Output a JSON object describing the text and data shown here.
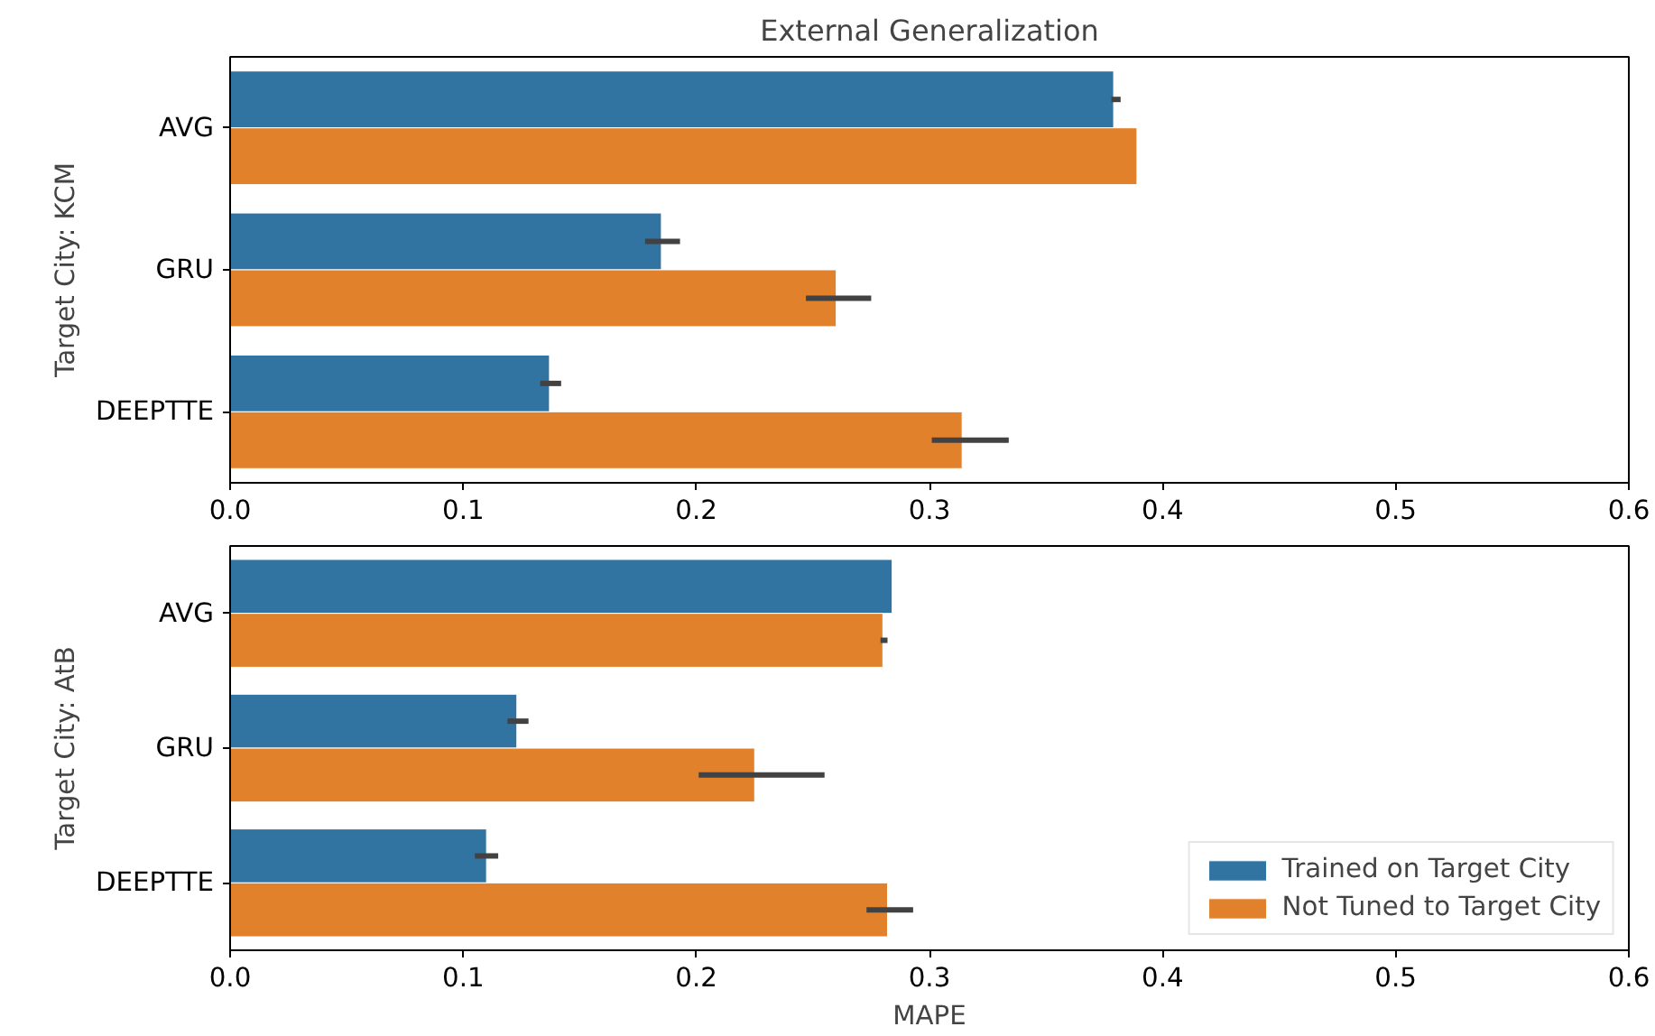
{
  "chart_data": [
    {
      "type": "bar",
      "orientation": "horizontal",
      "title": "External Generalization",
      "ylabel": "Target City: KCM",
      "categories": [
        "AVG",
        "GRU",
        "DEEPTTE"
      ],
      "xlim": [
        0,
        0.6
      ],
      "xticks": [
        {
          "value": 0,
          "label": "0.0"
        },
        0.1,
        0.2,
        0.3,
        0.4,
        0.5,
        0.6
      ],
      "grid": false,
      "legend": false,
      "series": [
        {
          "color": "#3274a1",
          "values": [
            0.379,
            0.185,
            0.137
          ],
          "errors": [
            [
              0.378,
              0.382
            ],
            [
              0.178,
              0.193
            ],
            [
              0.133,
              0.142
            ]
          ]
        },
        {
          "color": "#e1812c",
          "values": [
            0.389,
            0.26,
            0.314
          ],
          "errors": [
            null,
            [
              0.247,
              0.275
            ],
            [
              0.301,
              0.334
            ]
          ]
        }
      ]
    },
    {
      "type": "bar",
      "orientation": "horizontal",
      "ylabel": "Target City: AtB",
      "xlabel": "MAPE",
      "categories": [
        "AVG",
        "GRU",
        "DEEPTTE"
      ],
      "xlim": [
        0,
        0.6
      ],
      "xticks": [
        {
          "value": 0,
          "label": "0.0"
        },
        0.1,
        0.2,
        0.3,
        0.4,
        0.5,
        0.6
      ],
      "grid": false,
      "legend": "bottom right",
      "series": [
        {
          "name": "Trained on Target City",
          "color": "#3274a1",
          "values": [
            0.284,
            0.123,
            0.11
          ],
          "errors": [
            null,
            [
              0.119,
              0.128
            ],
            [
              0.105,
              0.115
            ]
          ]
        },
        {
          "name": "Not Tuned to Target City",
          "color": "#e1812c",
          "values": [
            0.28,
            0.225,
            0.282
          ],
          "errors": [
            [
              0.279,
              0.282
            ],
            [
              0.201,
              0.255
            ],
            [
              0.273,
              0.293
            ]
          ]
        }
      ]
    }
  ]
}
